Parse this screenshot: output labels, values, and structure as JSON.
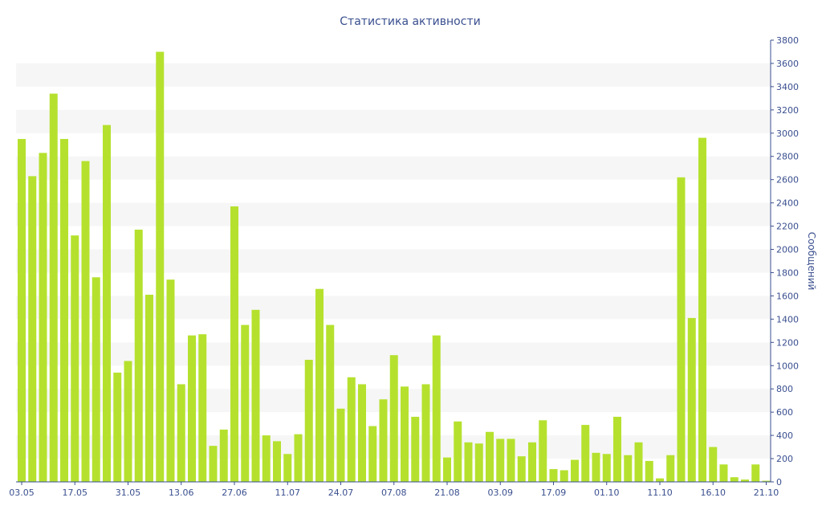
{
  "chart_data": {
    "type": "bar",
    "title": "Статистика активности",
    "xlabel": "",
    "ylabel": "Сообщений",
    "ylim": [
      0,
      3800
    ],
    "y_ticks": [
      0,
      200,
      400,
      600,
      800,
      1000,
      1200,
      1400,
      1600,
      1800,
      2000,
      2200,
      2400,
      2600,
      2800,
      3000,
      3200,
      3400,
      3600,
      3800
    ],
    "y_axis_side": "right",
    "grid": "alternating horizontal bands",
    "x_tick_labels": [
      "03.05",
      "17.05",
      "31.05",
      "13.06",
      "27.06",
      "11.07",
      "24.07",
      "07.08",
      "21.08",
      "03.09",
      "17.09",
      "01.10",
      "11.10",
      "16.10",
      "21.10"
    ],
    "x_tick_positions": [
      0,
      5,
      10,
      15,
      20,
      25,
      30,
      35,
      40,
      45,
      50,
      55,
      60,
      65,
      70
    ],
    "values": [
      2950,
      2630,
      2830,
      3340,
      2950,
      2120,
      2760,
      1760,
      3070,
      940,
      1040,
      2170,
      1610,
      3700,
      1740,
      840,
      1260,
      1270,
      310,
      450,
      2370,
      1350,
      1480,
      400,
      350,
      240,
      410,
      1050,
      1660,
      1350,
      630,
      900,
      840,
      480,
      710,
      1090,
      820,
      560,
      840,
      1260,
      210,
      520,
      340,
      330,
      430,
      370,
      370,
      220,
      340,
      530,
      110,
      100,
      190,
      490,
      250,
      240,
      560,
      230,
      340,
      180,
      30,
      230,
      2620,
      1410,
      2960,
      300,
      150,
      40,
      20,
      150,
      10
    ],
    "colors": {
      "bar": "#b5e12e",
      "band": "#f6f6f6",
      "text": "#3a4f8f",
      "axis": "#3a4f8f"
    }
  }
}
